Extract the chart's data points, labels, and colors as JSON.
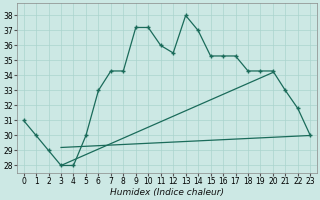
{
  "xlabel": "Humidex (Indice chaleur)",
  "bg_color": "#cce8e4",
  "line_color": "#1a6b5a",
  "grid_color": "#aad4ce",
  "x": [
    0,
    1,
    2,
    3,
    4,
    5,
    6,
    7,
    8,
    9,
    10,
    11,
    12,
    13,
    14,
    15,
    16,
    17,
    18,
    19,
    20,
    21,
    22,
    23
  ],
  "main_y": [
    31,
    30,
    29,
    28,
    28,
    30,
    33,
    34.3,
    34.3,
    37.2,
    37.2,
    36.0,
    35.5,
    38.0,
    37.0,
    35.3,
    35.3,
    35.3,
    34.3,
    34.3,
    34.3,
    33.0,
    31.8,
    30.0
  ],
  "line1_x": [
    3,
    20
  ],
  "line1_y": [
    28.0,
    34.2
  ],
  "line2_x": [
    3,
    23
  ],
  "line2_y": [
    29.2,
    30.0
  ],
  "ylim": [
    27.5,
    38.8
  ],
  "xlim": [
    -0.5,
    23.5
  ],
  "yticks": [
    28,
    29,
    30,
    31,
    32,
    33,
    34,
    35,
    36,
    37,
    38
  ],
  "xticks": [
    0,
    1,
    2,
    3,
    4,
    5,
    6,
    7,
    8,
    9,
    10,
    11,
    12,
    13,
    14,
    15,
    16,
    17,
    18,
    19,
    20,
    21,
    22,
    23
  ],
  "xlabel_size": 6.5,
  "tick_size": 5.5
}
